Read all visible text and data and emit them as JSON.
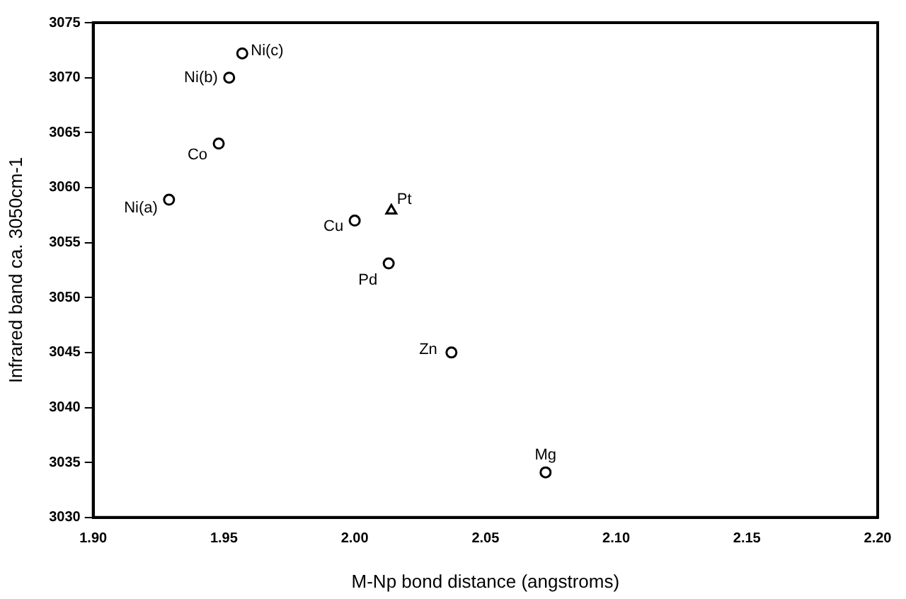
{
  "chart_data": {
    "type": "scatter",
    "xlabel": "M-Np bond distance (angstroms)",
    "ylabel": "Infrared band ca. 3050cm-1",
    "xlim": [
      1.9,
      2.2
    ],
    "xticks": [
      {
        "value": 1.9,
        "label": "1.90"
      },
      {
        "value": 1.95,
        "label": "1.95"
      },
      {
        "value": 2.0,
        "label": "2.00"
      },
      {
        "value": 2.05,
        "label": "2.05"
      },
      {
        "value": 2.1,
        "label": "2.10"
      },
      {
        "value": 2.15,
        "label": "2.15"
      },
      {
        "value": 2.2,
        "label": "2.20"
      }
    ],
    "ylim": [
      3030,
      3075
    ],
    "yticks": [
      3030,
      3035,
      3040,
      3045,
      3050,
      3055,
      3060,
      3065,
      3070,
      3075
    ],
    "grid": false,
    "legend": false,
    "series": [
      {
        "color": "#000000",
        "marker": "circle",
        "x": [
          1.929,
          1.952,
          1.957,
          1.948,
          2.013,
          2.0,
          2.037,
          2.073
        ],
        "values": [
          3058.9,
          3070.0,
          3072.2,
          3064.0,
          3053.1,
          3057.0,
          3045.0,
          3034.1
        ]
      },
      {
        "color": "#000000",
        "marker": "triangle",
        "x": [
          2.014
        ],
        "values": [
          3057.9
        ]
      }
    ],
    "annotations": [
      {
        "text": "Ni(a)",
        "x": 1.929,
        "y": 3058.9
      },
      {
        "text": "Ni(b)",
        "x": 1.952,
        "y": 3070.0
      },
      {
        "text": "Ni(c)",
        "x": 1.957,
        "y": 3072.2
      },
      {
        "text": "Co",
        "x": 1.948,
        "y": 3064.0
      },
      {
        "text": "Pd",
        "x": 2.013,
        "y": 3053.1
      },
      {
        "text": "Cu",
        "x": 2.0,
        "y": 3057.0
      },
      {
        "text": "Zn",
        "x": 2.037,
        "y": 3045.0
      },
      {
        "text": "Mg",
        "x": 2.073,
        "y": 3034.1
      },
      {
        "text": "Pt",
        "x": 2.014,
        "y": 3057.9
      }
    ]
  }
}
